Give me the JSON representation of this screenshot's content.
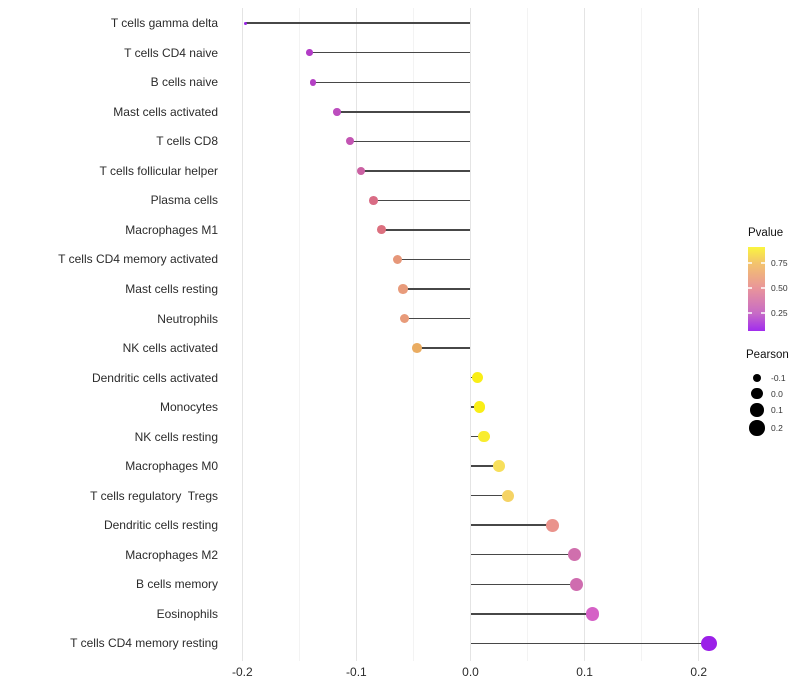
{
  "chart_data": {
    "type": "scatter",
    "subtype": "lollipop",
    "title": "",
    "xlabel": "",
    "ylabel": "",
    "grid": "vertical-only",
    "xlim": [
      -0.206,
      0.217
    ],
    "x_ticks": {
      "values": [
        -0.2,
        -0.1,
        0.0,
        0.1,
        0.2
      ],
      "labels": [
        "-0.2",
        "-0.1",
        "0.0",
        "0.1",
        "0.2"
      ]
    },
    "x_minor": [
      -0.15,
      -0.05,
      0.05,
      0.15
    ],
    "points": [
      {
        "label": "T cells gamma delta",
        "pearson": -0.197,
        "pvalue_est": 0.1,
        "color": "#9722E3"
      },
      {
        "label": "T cells CD4 naive",
        "pearson": -0.141,
        "pvalue_est": 0.22,
        "color": "#B23CC6"
      },
      {
        "label": "B cells naive",
        "pearson": -0.138,
        "pvalue_est": 0.23,
        "color": "#B440C4"
      },
      {
        "label": "Mast cells activated",
        "pearson": -0.117,
        "pvalue_est": 0.27,
        "color": "#BC4DBE"
      },
      {
        "label": "T cells CD8",
        "pearson": -0.106,
        "pvalue_est": 0.31,
        "color": "#C355B3"
      },
      {
        "label": "T cells follicular helper",
        "pearson": -0.096,
        "pvalue_est": 0.36,
        "color": "#CB61A3"
      },
      {
        "label": "Plasma cells",
        "pearson": -0.085,
        "pvalue_est": 0.44,
        "color": "#D96C85"
      },
      {
        "label": "Macrophages M1",
        "pearson": -0.078,
        "pvalue_est": 0.46,
        "color": "#DC707F"
      },
      {
        "label": "T cells CD4 memory activated",
        "pearson": -0.064,
        "pvalue_est": 0.55,
        "color": "#E69779"
      },
      {
        "label": "Mast cells resting",
        "pearson": -0.059,
        "pvalue_est": 0.56,
        "color": "#E89B7B"
      },
      {
        "label": "Neutrophils",
        "pearson": -0.058,
        "pvalue_est": 0.56,
        "color": "#E89B7A"
      },
      {
        "label": "NK cells activated",
        "pearson": -0.047,
        "pvalue_est": 0.63,
        "color": "#EAAC61"
      },
      {
        "label": "Dendritic cells activated",
        "pearson": 0.006,
        "pvalue_est": 0.9,
        "color": "#F9EE16"
      },
      {
        "label": "Monocytes",
        "pearson": 0.008,
        "pvalue_est": 0.9,
        "color": "#F9EE16"
      },
      {
        "label": "NK cells resting",
        "pearson": 0.012,
        "pvalue_est": 0.88,
        "color": "#F8EC2F"
      },
      {
        "label": "Macrophages M0",
        "pearson": 0.025,
        "pvalue_est": 0.82,
        "color": "#F7DF5B"
      },
      {
        "label": "T cells regulatory  Tregs",
        "pearson": 0.033,
        "pvalue_est": 0.78,
        "color": "#F5D365"
      },
      {
        "label": "Dendritic cells resting",
        "pearson": 0.072,
        "pvalue_est": 0.52,
        "color": "#EA938C"
      },
      {
        "label": "Macrophages M2",
        "pearson": 0.091,
        "pvalue_est": 0.38,
        "color": "#D06FAD"
      },
      {
        "label": "B cells memory",
        "pearson": 0.093,
        "pvalue_est": 0.37,
        "color": "#CF6CAF"
      },
      {
        "label": "Eosinophils",
        "pearson": 0.107,
        "pvalue_est": 0.29,
        "color": "#D561C6"
      },
      {
        "label": "T cells CD4 memory resting",
        "pearson": 0.209,
        "pvalue_est": 0.12,
        "color": "#9B20E8"
      }
    ],
    "legend": {
      "pvalue": {
        "title": "Pvalue",
        "tick_labels": [
          "0.75",
          "0.50",
          "0.25"
        ],
        "tick_values": [
          0.75,
          0.5,
          0.25
        ],
        "bar_range": [
          0.07,
          0.91
        ],
        "gradient_bottom_to_top": [
          "#A12CEE",
          "#C76BC6",
          "#E9959A",
          "#F3C46C",
          "#FAF53F"
        ]
      },
      "pearson": {
        "title": "Pearson",
        "items": [
          {
            "label": "-0.1",
            "value": -0.1
          },
          {
            "label": "0.0",
            "value": 0.0
          },
          {
            "label": "0.1",
            "value": 0.1
          },
          {
            "label": "0.2",
            "value": 0.2
          }
        ]
      }
    },
    "colors": {
      "stem": "#474747",
      "grid_major": "#e4e4e4",
      "grid_minor": "#f3f3f3",
      "axis_text": "#2b2b2b"
    }
  }
}
